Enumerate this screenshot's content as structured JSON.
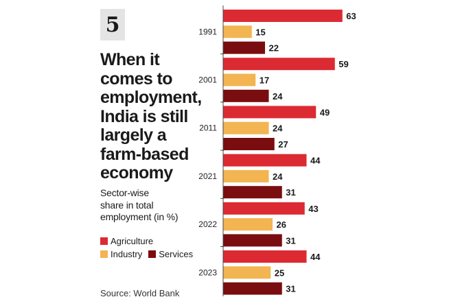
{
  "badge": "5",
  "headline_lines": [
    "When it",
    "comes to",
    "employment,",
    "India is still",
    "largely a",
    "farm-based",
    "economy"
  ],
  "subtitle_lines": [
    "Sector-wise",
    "share in total",
    "employment (in %)"
  ],
  "source": "Source: World Bank",
  "legend": {
    "agriculture": "Agriculture",
    "industry": "Industry",
    "services": "Services"
  },
  "colors": {
    "agriculture": "#dc2a33",
    "industry": "#f2b552",
    "services": "#7a0d0f",
    "badge_bg": "#e4e4e4"
  },
  "chart_data": {
    "type": "bar",
    "orientation": "horizontal",
    "categories": [
      "1991",
      "2001",
      "2011",
      "2021",
      "2022",
      "2023"
    ],
    "series": [
      {
        "name": "Agriculture",
        "values": [
          63,
          59,
          49,
          44,
          43,
          44
        ]
      },
      {
        "name": "Industry",
        "values": [
          15,
          17,
          24,
          24,
          26,
          25
        ]
      },
      {
        "name": "Services",
        "values": [
          22,
          24,
          27,
          31,
          31,
          31
        ]
      }
    ],
    "title": "When it comes to employment, India is still largely a farm-based economy",
    "subtitle": "Sector-wise share in total employment (in %)",
    "data_labels": true,
    "grid": false,
    "legend_position": "left"
  }
}
